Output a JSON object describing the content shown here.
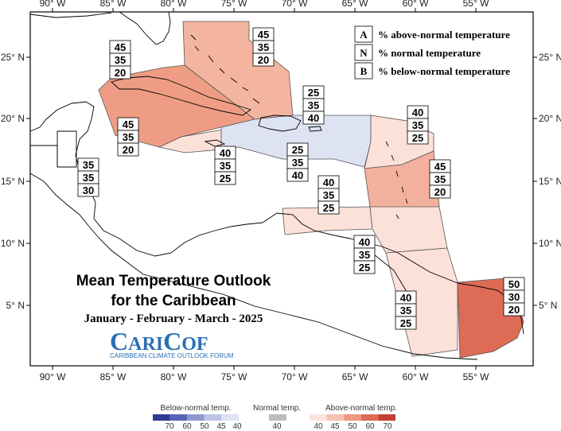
{
  "map": {
    "lon_ticks": [
      "90° W",
      "85° W",
      "80° W",
      "75° W",
      "70° W",
      "65° W",
      "60° W",
      "55° W"
    ],
    "lat_ticks": [
      "25° N",
      "20° N",
      "15° N",
      "10° N",
      "5° N"
    ]
  },
  "legend": {
    "rows": [
      {
        "key": "A",
        "text": "% above-normal temperature"
      },
      {
        "key": "N",
        "text": "% normal temperature"
      },
      {
        "key": "B",
        "text": "% below-normal temperature"
      }
    ]
  },
  "title": {
    "line1": "Mean Temperature Outlook",
    "line2": "for the Caribbean",
    "line3": "January - February - March - 2025"
  },
  "logo": {
    "c1": "C",
    "ari": "ARI",
    "c2": "C",
    "of": "OF",
    "subtitle": "CARIBBEAN CLIMATE OUTLOOK FORUM"
  },
  "probabilities": [
    {
      "id": "bahamas",
      "values": [
        "45",
        "35",
        "20"
      ]
    },
    {
      "id": "west-cuba-caymans",
      "values": [
        "45",
        "35",
        "20"
      ]
    },
    {
      "id": "cuba-north",
      "values": [
        "45",
        "35",
        "20"
      ]
    },
    {
      "id": "belize",
      "values": [
        "35",
        "35",
        "30"
      ]
    },
    {
      "id": "jamaica",
      "values": [
        "40",
        "35",
        "25"
      ]
    },
    {
      "id": "hispaniola",
      "values": [
        "25",
        "35",
        "40"
      ]
    },
    {
      "id": "puerto-rico",
      "values": [
        "25",
        "35",
        "40"
      ]
    },
    {
      "id": "leeward-islands",
      "values": [
        "40",
        "35",
        "25"
      ]
    },
    {
      "id": "windward-islands",
      "values": [
        "45",
        "35",
        "20"
      ]
    },
    {
      "id": "abc-islands",
      "values": [
        "40",
        "35",
        "25"
      ]
    },
    {
      "id": "trinidad",
      "values": [
        "40",
        "35",
        "25"
      ]
    },
    {
      "id": "guyana",
      "values": [
        "40",
        "35",
        "25"
      ]
    },
    {
      "id": "suriname-guiana",
      "values": [
        "50",
        "30",
        "20"
      ]
    }
  ],
  "colorbar": {
    "below_label": "Below-normal temp.",
    "below_ticks": [
      "70",
      "60",
      "50",
      "45",
      "40"
    ],
    "normal_label": "Normal temp.",
    "normal_ticks": [
      "40"
    ],
    "above_label": "Above-normal temp.",
    "above_ticks": [
      "40",
      "45",
      "50",
      "60",
      "70"
    ],
    "below_colors": [
      "#2f3d91",
      "#5765b5",
      "#8f98d0",
      "#bcc3e6",
      "#dee2f3"
    ],
    "normal_color": "#bdbdbd",
    "above_colors": [
      "#fbe4dd",
      "#f6c2b1",
      "#ee9880",
      "#dc6a54",
      "#c43f34"
    ]
  }
}
